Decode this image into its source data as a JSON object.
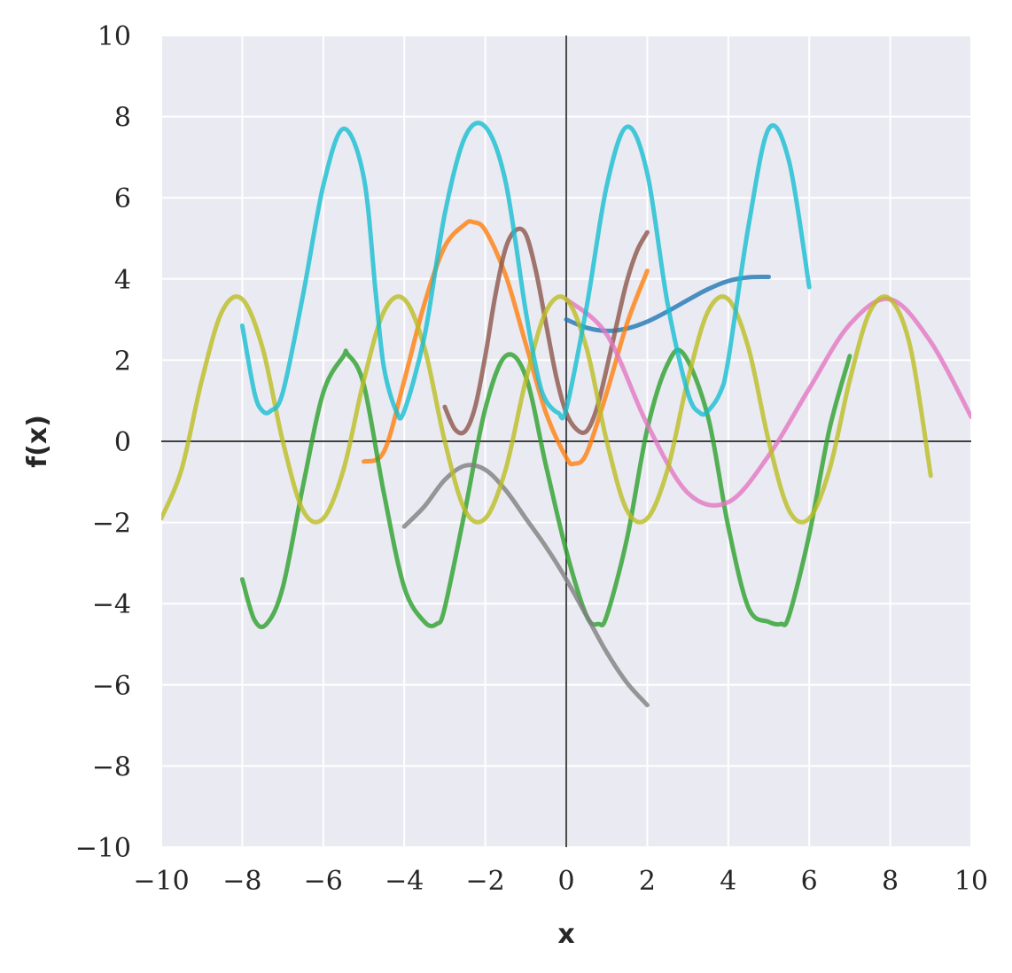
{
  "chart_data": {
    "type": "line",
    "title": "",
    "xlabel": "x",
    "ylabel": "f(x)",
    "xlim": [
      -10,
      10
    ],
    "ylim": [
      -10,
      10
    ],
    "xticks": [
      -10,
      -8,
      -6,
      -4,
      -2,
      0,
      2,
      4,
      6,
      8,
      10
    ],
    "yticks": [
      -10,
      -8,
      -6,
      -4,
      -2,
      0,
      2,
      4,
      6,
      8,
      10
    ],
    "xtick_labels": [
      "−10",
      "−8",
      "−6",
      "−4",
      "−2",
      "0",
      "2",
      "4",
      "6",
      "8",
      "10"
    ],
    "ytick_labels": [
      "−10",
      "−8",
      "−6",
      "−4",
      "−2",
      "0",
      "2",
      "4",
      "6",
      "8",
      "10"
    ],
    "grid": true,
    "zero_axes": true,
    "background": "#EAEAF2",
    "series": [
      {
        "color": "#1f77b4",
        "x": [
          0,
          0.5,
          1,
          1.5,
          2,
          2.5,
          3,
          3.5,
          4,
          4.5,
          5
        ],
        "y": [
          3.0,
          2.8,
          2.72,
          2.78,
          2.95,
          3.2,
          3.48,
          3.75,
          3.95,
          4.04,
          4.05
        ]
      },
      {
        "color": "#ff7f0e",
        "x": [
          -5,
          -4.5,
          -4,
          -3.5,
          -3,
          -2.5,
          -2.3,
          -2,
          -1.5,
          -1,
          -0.5,
          0,
          0.2,
          0.5,
          1,
          1.5,
          2
        ],
        "y": [
          -0.5,
          -0.25,
          1.5,
          3.4,
          4.8,
          5.35,
          5.4,
          5.2,
          4.1,
          2.4,
          0.7,
          -0.4,
          -0.55,
          -0.3,
          1.2,
          2.9,
          4.2
        ]
      },
      {
        "color": "#2ca02c",
        "x": [
          -8,
          -7.7,
          -7.4,
          -7,
          -6.5,
          -6,
          -5.5,
          -5.4,
          -5,
          -4.5,
          -4,
          -3.5,
          -3.2,
          -3,
          -2.5,
          -2,
          -1.5,
          -1,
          -0.5,
          0,
          0.5,
          0.8,
          1,
          1.5,
          2,
          2.5,
          2.9,
          3.5,
          4,
          4.5,
          5,
          5.3,
          5.5,
          6,
          6.5,
          7
        ],
        "y": [
          -3.4,
          -4.4,
          -4.5,
          -3.6,
          -1.1,
          1.2,
          2.1,
          2.15,
          1.4,
          -1.3,
          -3.6,
          -4.45,
          -4.5,
          -4.1,
          -1.7,
          0.8,
          2.1,
          1.6,
          -0.6,
          -2.7,
          -4.3,
          -4.5,
          -4.3,
          -2.4,
          0.3,
          1.9,
          2.15,
          0.6,
          -2.1,
          -4.1,
          -4.45,
          -4.5,
          -4.3,
          -2.3,
          0.3,
          2.1
        ]
      },
      {
        "color": "#8c564b",
        "x": [
          -3,
          -2.75,
          -2.5,
          -2.25,
          -2,
          -1.75,
          -1.5,
          -1.25,
          -1,
          -0.75,
          -0.5,
          -0.25,
          0,
          0.25,
          0.5,
          0.75,
          1,
          1.25,
          1.5,
          1.75,
          2
        ],
        "y": [
          0.85,
          0.3,
          0.25,
          0.85,
          2.1,
          3.6,
          4.75,
          5.2,
          5.1,
          4.2,
          2.9,
          1.6,
          0.7,
          0.3,
          0.25,
          0.8,
          1.8,
          2.9,
          3.95,
          4.7,
          5.15
        ]
      },
      {
        "color": "#e377c2",
        "x": [
          0,
          1,
          2,
          3,
          4,
          5,
          6,
          7,
          8,
          9,
          10
        ],
        "y": [
          3.5,
          2.63,
          0.42,
          -1.27,
          -1.5,
          -0.35,
          1.3,
          2.88,
          3.5,
          2.45,
          0.6
        ]
      },
      {
        "color": "#7f7f7f",
        "x": [
          -4,
          -3.5,
          -3,
          -2.5,
          -2,
          -1.5,
          -1,
          -0.5,
          0,
          0.5,
          1,
          1.5,
          2
        ],
        "y": [
          -2.1,
          -1.6,
          -0.95,
          -0.6,
          -0.7,
          -1.2,
          -1.9,
          -2.6,
          -3.4,
          -4.3,
          -5.2,
          -5.95,
          -6.5
        ]
      },
      {
        "color": "#bcbd22",
        "x": [
          -10,
          -9.5,
          -9,
          -8.5,
          -8,
          -7.5,
          -7,
          -6.5,
          -6,
          -5.5,
          -5,
          -4.5,
          -4,
          -3.5,
          -3,
          -2.5,
          -2,
          -1.5,
          -1,
          -0.5,
          0,
          0.5,
          1,
          1.5,
          2,
          2.5,
          3,
          3.5,
          4,
          4.5,
          5,
          5.5,
          6,
          6.5,
          7,
          7.5,
          8,
          8.5,
          9
        ],
        "y": [
          -1.9,
          -0.7,
          1.5,
          3.2,
          3.5,
          2.3,
          0.0,
          -1.7,
          -1.9,
          -0.7,
          1.5,
          3.2,
          3.5,
          2.3,
          0.0,
          -1.7,
          -1.9,
          -0.7,
          1.5,
          3.2,
          3.5,
          2.3,
          0.0,
          -1.7,
          -1.9,
          -0.7,
          1.5,
          3.2,
          3.5,
          2.3,
          0.0,
          -1.7,
          -1.9,
          -0.7,
          1.5,
          3.2,
          3.5,
          2.3,
          -0.85
        ]
      },
      {
        "color": "#17becf",
        "x": [
          -8,
          -7.7,
          -7.5,
          -7.3,
          -7,
          -6.5,
          -6,
          -5.5,
          -5,
          -4.7,
          -4.5,
          -4.2,
          -4,
          -3.5,
          -3,
          -2.5,
          -2,
          -1.5,
          -1,
          -0.7,
          -0.5,
          -0.2,
          0,
          0.5,
          1,
          1.5,
          2,
          2.5,
          3,
          3.3,
          3.5,
          3.8,
          4,
          4.5,
          5,
          5.5,
          6
        ],
        "y": [
          2.85,
          1.2,
          0.75,
          0.75,
          1.2,
          3.6,
          6.3,
          7.7,
          6.5,
          3.6,
          1.8,
          0.75,
          0.75,
          2.6,
          5.6,
          7.5,
          7.75,
          6.4,
          3.2,
          1.6,
          1.0,
          0.7,
          0.8,
          3.3,
          6.3,
          7.75,
          6.6,
          3.4,
          1.2,
          0.7,
          0.75,
          1.2,
          2.0,
          5.3,
          7.7,
          6.9,
          3.8
        ]
      }
    ]
  }
}
